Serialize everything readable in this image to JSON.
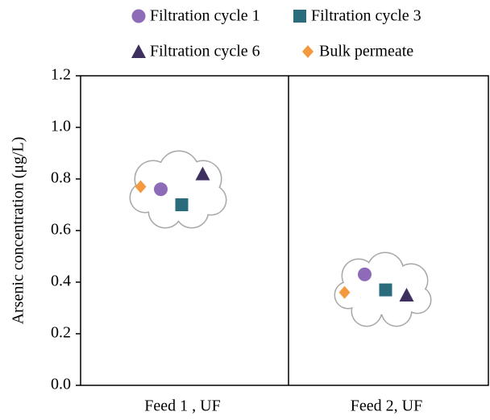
{
  "chart_data": {
    "type": "scatter",
    "y_label": "Arsenic concentration (μg/L)",
    "categories": [
      "Feed 1 , UF",
      "Feed 2, UF"
    ],
    "series": [
      {
        "name": "Filtration cycle 1",
        "color": "#8e6bb8",
        "marker": "circle",
        "values": [
          0.76,
          0.43
        ]
      },
      {
        "name": "Filtration cycle 3",
        "color": "#2b6c7c",
        "marker": "square",
        "values": [
          0.7,
          0.37
        ]
      },
      {
        "name": "Filtration cycle 6",
        "color": "#3d2f5e",
        "marker": "triangle",
        "values": [
          0.82,
          0.35
        ]
      },
      {
        "name": "Bulk permeate",
        "color": "#f5993f",
        "marker": "diamond",
        "values": [
          0.77,
          0.36
        ]
      }
    ],
    "ylim": [
      0,
      1.2
    ],
    "yticks": [
      {
        "value": 0,
        "label": "0.0"
      },
      0.2,
      0.4,
      0.6,
      0.8,
      {
        "value": 1,
        "label": "1.0"
      },
      1.2
    ],
    "legend": "top"
  }
}
